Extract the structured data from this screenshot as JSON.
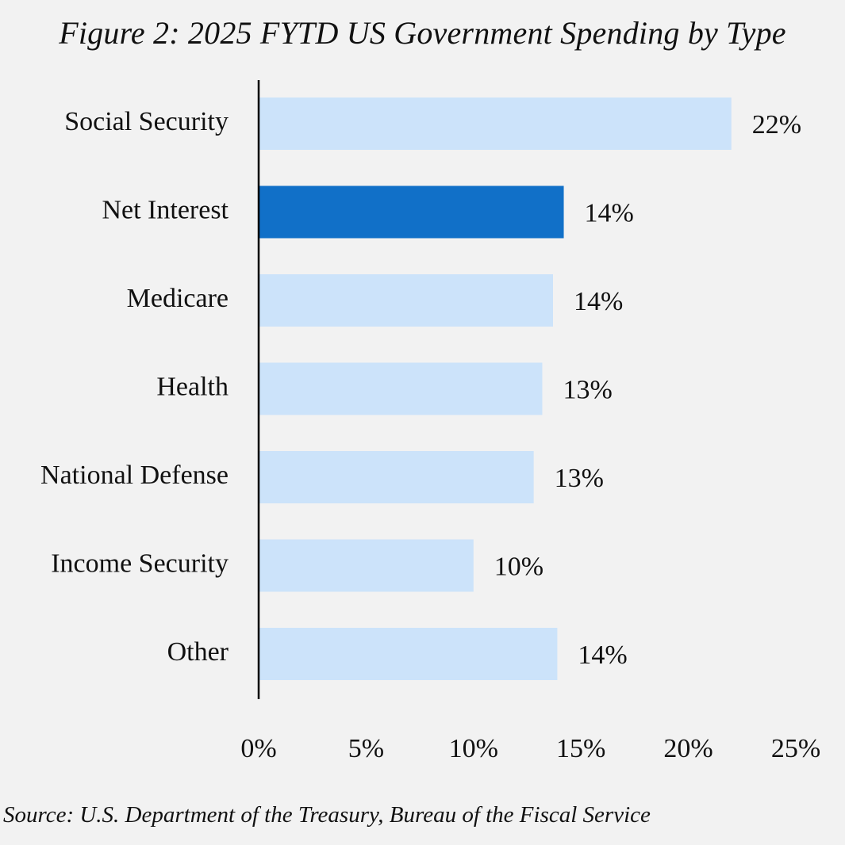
{
  "title": "Figure 2: 2025 FYTD US Government Spending by Type",
  "source": "Source: U.S. Department of the Treasury, Bureau of the Fiscal Service",
  "colors": {
    "background": "#f2f2f2",
    "bar": "#cce3fa",
    "highlight": "#1170c8",
    "axis": "#000000",
    "text": "#111111"
  },
  "chart_data": {
    "type": "bar",
    "orientation": "horizontal",
    "title": "Figure 2: 2025 FYTD US Government Spending by Type",
    "categories": [
      "Social Security",
      "Net Interest",
      "Medicare",
      "Health",
      "National Defense",
      "Income Security",
      "Other"
    ],
    "values": [
      22,
      14.2,
      13.7,
      13.2,
      12.8,
      10,
      13.9
    ],
    "value_labels": [
      "22%",
      "14%",
      "14%",
      "13%",
      "13%",
      "10%",
      "14%"
    ],
    "highlight_category": "Net Interest",
    "xlim": [
      0,
      25
    ],
    "x_ticks": [
      0,
      5,
      10,
      15,
      20,
      25
    ],
    "x_tick_labels": [
      "0%",
      "5%",
      "10%",
      "15%",
      "20%",
      "25%"
    ],
    "xlabel": "",
    "ylabel": "",
    "grid": false,
    "legend": "none"
  }
}
